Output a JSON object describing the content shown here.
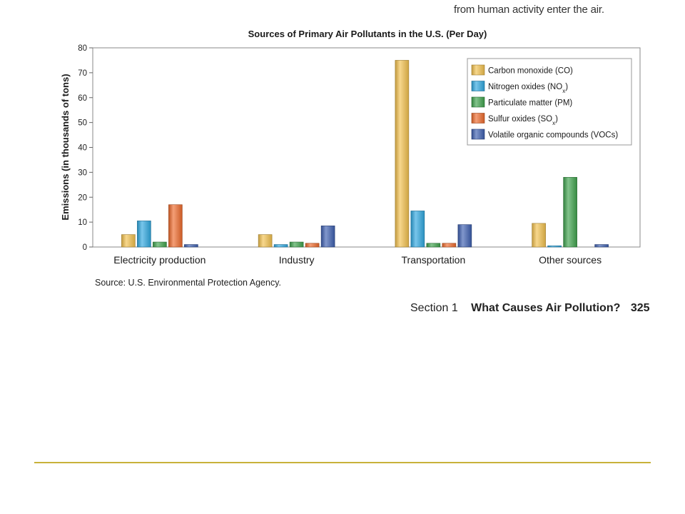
{
  "page": {
    "top_text": "from human activity enter the air.",
    "source": "Source: U.S. Environmental Protection Agency.",
    "footer": {
      "section": "Section 1",
      "title": "What Causes Air Pollution?",
      "page_number": "325"
    },
    "rule_color": "#c8b23a"
  },
  "chart_data": {
    "type": "bar",
    "title": "Sources of Primary Air Pollutants in the U.S. (Per Day)",
    "xlabel": "",
    "ylabel": "Emissions (in thousands of tons)",
    "ylim": [
      0,
      80
    ],
    "yticks": [
      0,
      10,
      20,
      30,
      40,
      50,
      60,
      70,
      80
    ],
    "grid": false,
    "legend_position": "top-right",
    "categories": [
      "Electricity production",
      "Industry",
      "Transportation",
      "Other sources"
    ],
    "series": [
      {
        "name": "Carbon monoxide (CO)",
        "base": "Carbon monoxide (CO)",
        "sub": "",
        "tail": "",
        "color": "#f2c14e",
        "values": [
          5,
          5,
          75,
          9.5
        ]
      },
      {
        "name": "Nitrogen oxides (NOx)",
        "base": "Nitrogen oxides (NO",
        "sub": "x",
        "tail": ")",
        "color": "#2fa8e0",
        "values": [
          10.5,
          1,
          14.5,
          0.5
        ]
      },
      {
        "name": "Particulate matter (PM)",
        "base": "Particulate matter (PM)",
        "sub": "",
        "tail": "",
        "color": "#3fa34d",
        "values": [
          2,
          2,
          1.5,
          28
        ]
      },
      {
        "name": "Sulfur oxides (SOx)",
        "base": "Sulfur oxides (SO",
        "sub": "x",
        "tail": ")",
        "color": "#ee6a2c",
        "values": [
          17,
          1.5,
          1.5,
          0
        ]
      },
      {
        "name": "Volatile organic compounds (VOCs)",
        "base": "Volatile organic compounds (VOCs)",
        "sub": "",
        "tail": "",
        "color": "#3d5fb0",
        "values": [
          1,
          8.5,
          9,
          1
        ]
      }
    ]
  }
}
